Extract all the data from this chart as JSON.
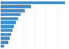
{
  "values": [
    285,
    134,
    108,
    88,
    75,
    66,
    58,
    52,
    46,
    40,
    34,
    16
  ],
  "bar_color": "#3d8fd1",
  "background_color": "#ffffff",
  "grid_color": "#e8e8e8",
  "figsize": [
    1.0,
    0.71
  ],
  "dpi": 100
}
